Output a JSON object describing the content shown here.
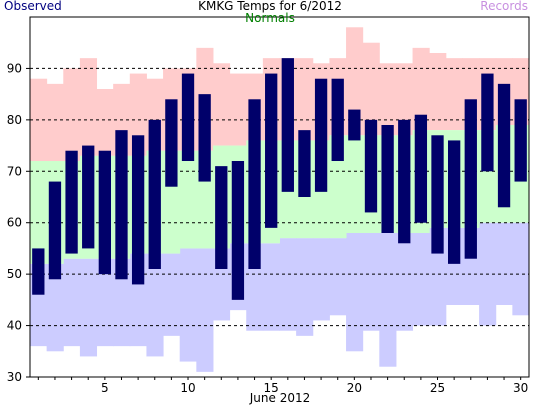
{
  "header": {
    "title": "KMKG Temps for 6/2012",
    "legend_observed": "Observed",
    "legend_normals": "Normals",
    "legend_records": "Records"
  },
  "colors": {
    "observed": "#00006a",
    "normals": "#ccffcc",
    "record_high": "#ffcccc",
    "record_low": "#ccccff",
    "observed_text": "#00007f",
    "normals_text": "#008000",
    "records_text": "#c890e0"
  },
  "chart_data": {
    "type": "bar",
    "title": "KMKG Temps for 6/2012",
    "xlabel": "June 2012",
    "ylabel": "",
    "ylim": [
      30,
      100
    ],
    "yticks": [
      30,
      40,
      50,
      60,
      70,
      80,
      90
    ],
    "xticks": [
      5,
      10,
      15,
      20,
      25,
      30
    ],
    "grid": "horizontal dashed at 40, 50, 60, 70, 80, 90",
    "days": [
      1,
      2,
      3,
      4,
      5,
      6,
      7,
      8,
      9,
      10,
      11,
      12,
      13,
      14,
      15,
      16,
      17,
      18,
      19,
      20,
      21,
      22,
      23,
      24,
      25,
      26,
      27,
      28,
      29,
      30
    ],
    "series": [
      {
        "name": "Observed",
        "high": [
          55,
          68,
          74,
          75,
          74,
          78,
          77,
          80,
          84,
          89,
          85,
          71,
          72,
          84,
          89,
          92,
          78,
          88,
          88,
          82,
          80,
          79,
          80,
          81,
          77,
          76,
          84,
          89,
          87,
          84
        ],
        "low": [
          46,
          49,
          54,
          55,
          50,
          49,
          48,
          51,
          67,
          72,
          68,
          51,
          45,
          51,
          59,
          66,
          65,
          66,
          72,
          76,
          62,
          58,
          56,
          60,
          54,
          52,
          53,
          70,
          63,
          68
        ]
      },
      {
        "name": "Normals",
        "high": [
          72,
          72,
          72,
          73,
          73,
          73,
          73,
          74,
          74,
          74,
          74,
          75,
          75,
          76,
          76,
          76,
          76,
          76,
          77,
          77,
          77,
          77,
          77,
          78,
          78,
          78,
          78,
          78,
          79,
          79
        ],
        "low": [
          52,
          52,
          53,
          53,
          53,
          53,
          54,
          54,
          54,
          55,
          55,
          55,
          56,
          56,
          56,
          57,
          57,
          57,
          57,
          58,
          58,
          58,
          58,
          58,
          59,
          59,
          59,
          60,
          60,
          60
        ]
      },
      {
        "name": "Records",
        "high": [
          88,
          87,
          90,
          92,
          86,
          87,
          89,
          88,
          90,
          90,
          94,
          91,
          89,
          89,
          92,
          92,
          92,
          91,
          92,
          98,
          95,
          91,
          91,
          94,
          93,
          92,
          92,
          92,
          92,
          92
        ],
        "low": [
          36,
          35,
          36,
          34,
          36,
          36,
          36,
          34,
          38,
          33,
          31,
          41,
          43,
          39,
          39,
          39,
          38,
          41,
          42,
          35,
          39,
          32,
          39,
          40,
          40,
          44,
          44,
          40,
          44,
          42
        ]
      }
    ]
  }
}
